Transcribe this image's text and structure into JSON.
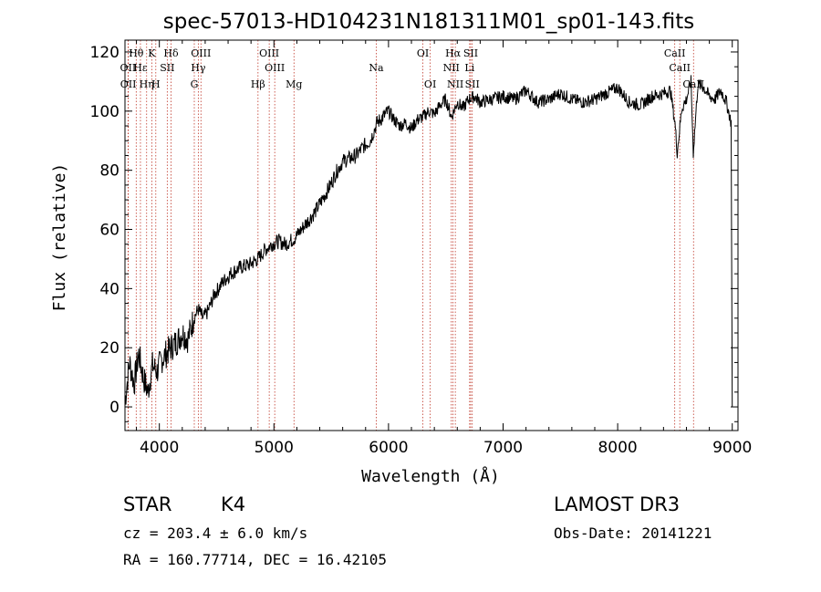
{
  "chart_data": {
    "type": "line",
    "title": "spec-57013-HD104231N181311M01_sp01-143.fits",
    "xlabel": "Wavelength (Å)",
    "ylabel": "Flux (relative)",
    "xlim": [
      3700,
      9050
    ],
    "ylim": [
      -8,
      124
    ],
    "xticks": [
      4000,
      5000,
      6000,
      7000,
      8000,
      9000
    ],
    "yticks": [
      0,
      20,
      40,
      60,
      80,
      100,
      120
    ],
    "series": [
      {
        "name": "spectrum",
        "x": [
          3700,
          3740,
          3780,
          3820,
          3860,
          3900,
          3940,
          3980,
          4020,
          4060,
          4100,
          4150,
          4200,
          4250,
          4300,
          4340,
          4380,
          4420,
          4480,
          4550,
          4620,
          4700,
          4780,
          4860,
          4920,
          4980,
          5040,
          5100,
          5180,
          5240,
          5300,
          5360,
          5420,
          5480,
          5540,
          5600,
          5660,
          5720,
          5780,
          5840,
          5900,
          5950,
          6000,
          6050,
          6100,
          6150,
          6200,
          6250,
          6300,
          6350,
          6400,
          6450,
          6500,
          6550,
          6600,
          6650,
          6700,
          6750,
          6800,
          6900,
          7000,
          7100,
          7200,
          7300,
          7400,
          7500,
          7600,
          7700,
          7800,
          7900,
          8000,
          8100,
          8200,
          8300,
          8400,
          8460,
          8500,
          8520,
          8560,
          8600,
          8640,
          8660,
          8700,
          8750,
          8800,
          8850,
          8900,
          8950,
          8990,
          9000
        ],
        "y": [
          2,
          15,
          8,
          18,
          10,
          5,
          14,
          12,
          16,
          18,
          20,
          22,
          25,
          23,
          30,
          33,
          30,
          32,
          38,
          42,
          45,
          47,
          48,
          50,
          53,
          55,
          56,
          55,
          57,
          60,
          63,
          66,
          70,
          74,
          79,
          83,
          84,
          85,
          88,
          90,
          96,
          98,
          100,
          97,
          95,
          96,
          94,
          97,
          98,
          100,
          99,
          102,
          104,
          98,
          103,
          101,
          104,
          105,
          103,
          104,
          105,
          104,
          107,
          103,
          104,
          106,
          104,
          103,
          104,
          106,
          108,
          103,
          102,
          105,
          106,
          107,
          96,
          86,
          101,
          104,
          110,
          86,
          109,
          108,
          105,
          104,
          107,
          103,
          96,
          0
        ]
      }
    ],
    "spectral_lines": [
      {
        "label": "Hθ",
        "wavelength": 3798,
        "row": 1
      },
      {
        "label": "K",
        "wavelength": 3934,
        "row": 1
      },
      {
        "label": "Hδ",
        "wavelength": 4102,
        "row": 1
      },
      {
        "label": "OIII",
        "wavelength": 4363,
        "row": 1
      },
      {
        "label": "OIII",
        "wavelength": 4959,
        "row": 1
      },
      {
        "label": "OI",
        "wavelength": 6300,
        "row": 1
      },
      {
        "label": "Hα",
        "wavelength": 6563,
        "row": 1
      },
      {
        "label": "SII",
        "wavelength": 6717,
        "row": 1
      },
      {
        "label": "CaII",
        "wavelength": 8498,
        "row": 1
      },
      {
        "label": "OII",
        "wavelength": 3727,
        "row": 2
      },
      {
        "label": "Hε",
        "wavelength": 3835,
        "row": 2
      },
      {
        "label": "SII",
        "wavelength": 4069,
        "row": 2
      },
      {
        "label": "Hγ",
        "wavelength": 4340,
        "row": 2
      },
      {
        "label": "OIII",
        "wavelength": 5007,
        "row": 2
      },
      {
        "label": "Na",
        "wavelength": 5893,
        "row": 2
      },
      {
        "label": "NII",
        "wavelength": 6548,
        "row": 2
      },
      {
        "label": "Li",
        "wavelength": 6708,
        "row": 2
      },
      {
        "label": "CaII",
        "wavelength": 8542,
        "row": 2
      },
      {
        "label": "OII",
        "wavelength": 3729,
        "row": 3
      },
      {
        "label": "Hη",
        "wavelength": 3889,
        "row": 3
      },
      {
        "label": "H",
        "wavelength": 3969,
        "row": 3
      },
      {
        "label": "G",
        "wavelength": 4305,
        "row": 3
      },
      {
        "label": "Hβ",
        "wavelength": 4861,
        "row": 3
      },
      {
        "label": "Mg",
        "wavelength": 5175,
        "row": 3
      },
      {
        "label": "OI",
        "wavelength": 6364,
        "row": 3
      },
      {
        "label": "NII",
        "wavelength": 6583,
        "row": 3
      },
      {
        "label": "SII",
        "wavelength": 6731,
        "row": 3
      },
      {
        "label": "CaII",
        "wavelength": 8662,
        "row": 3
      }
    ]
  },
  "info": {
    "object_class": "STAR",
    "subclass": "K4",
    "survey": "LAMOST DR3",
    "cz": "cz = 203.4 ± 6.0 km/s",
    "obs_date": "Obs-Date: 20141221",
    "coords": "RA = 160.77714, DEC =  16.42105"
  },
  "colors": {
    "spectrum": "#000000",
    "line_marker": "#c0392b",
    "axes": "#000000"
  }
}
